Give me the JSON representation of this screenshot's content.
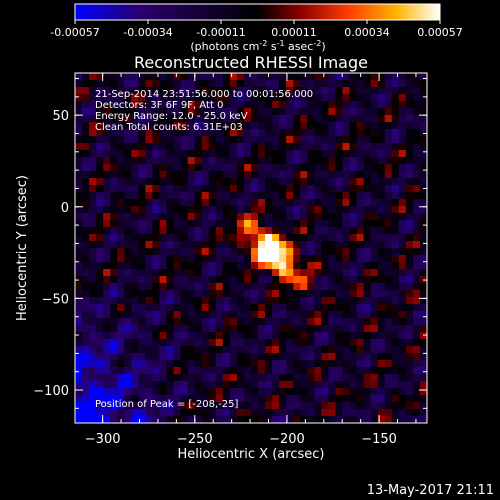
{
  "colorbar": {
    "ticks": [
      "-0.00057",
      "-0.00034",
      "-0.00011",
      "0.00011",
      "0.00034",
      "0.00057"
    ],
    "units_main": "(photons cm",
    "units_sup1": "-2",
    "units_mid1": " s",
    "units_sup2": "-1",
    "units_mid2": " asec",
    "units_sup3": "-2",
    "units_end": ")",
    "stops": [
      "#0000ff",
      "#2a006e",
      "#000000",
      "#8c0000",
      "#ff3c00",
      "#ffb400",
      "#ffffff"
    ]
  },
  "chart_data": {
    "type": "heatmap",
    "title": "Reconstructed RHESSI Image",
    "xlabel": "Heliocentric X (arcsec)",
    "ylabel": "Heliocentric Y (arcsec)",
    "xlim": [
      -315,
      -124
    ],
    "ylim": [
      -118,
      73
    ],
    "xticks": [
      -300,
      -250,
      -200,
      -150
    ],
    "yticks": [
      -100,
      -50,
      0,
      50
    ],
    "xtick_labels": [
      "−300",
      "−250",
      "−200",
      "−150"
    ],
    "ytick_labels": [
      "−100",
      "−50",
      "0",
      "50"
    ],
    "peak_position": [
      -208,
      -25
    ],
    "value_range": [
      -0.00057,
      0.00057
    ]
  },
  "annotations": {
    "time": "21-Sep-2014 23:51:56.000 to 00:01:56.000",
    "detectors": "Detectors: 3F 6F 9F, Att 0",
    "energy": "Energy Range: 12.0 - 25.0 keV",
    "clean": "Clean     Total counts: 6.31E+03",
    "peak": "Position of Peak = [-208,-25]"
  },
  "footer": {
    "timestamp": "13-May-2017 21:11"
  }
}
